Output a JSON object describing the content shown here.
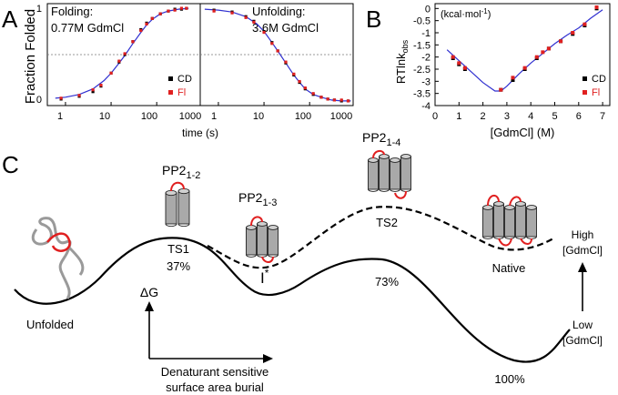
{
  "panels": {
    "A": {
      "letter": "A",
      "ylabel": "Fraction Folded",
      "xlabel": "time (s)",
      "yticks": [
        "0",
        "1"
      ],
      "xticks": [
        "1",
        "10",
        "100",
        "1000"
      ],
      "legend": {
        "cd": "CD",
        "fl": "Fl"
      },
      "left": {
        "label_line1": "Folding:",
        "label_line2": "0.77M GdmCl"
      },
      "right": {
        "label_line1": "Unfolding:",
        "label_line2": "3.6M GdmCl"
      }
    },
    "B": {
      "letter": "B",
      "unit": "(kcal·mol",
      "unit_sup": "-1",
      "unit_close": ")",
      "ylabel_main": "RTlnk",
      "ylabel_sub": "obs",
      "xlabel": "[GdmCl] (M)",
      "yticks": [
        "0",
        "-0.5",
        "-1",
        "-1.5",
        "-2",
        "-2.5",
        "-3",
        "-3.5",
        "-4"
      ],
      "xticks": [
        "0",
        "1",
        "2",
        "3",
        "4",
        "5",
        "6",
        "7"
      ],
      "legend": {
        "cd": "CD",
        "fl": "Fl"
      }
    },
    "C": {
      "letter": "C",
      "labels": {
        "pp2_12_main": "PP2",
        "pp2_12_sub": "1-2",
        "pp2_13_main": "PP2",
        "pp2_13_sub": "1-3",
        "pp2_14_main": "PP2",
        "pp2_14_sub": "1-4",
        "ts1": "TS1",
        "ts1_pct": "37%",
        "ts2": "TS2",
        "ts2_pct": "73%",
        "istar": "I",
        "istar_sup": "*",
        "native": "Native",
        "unfolded": "Unfolded",
        "delta_g": "ΔG",
        "axis_line1": "Denaturant sensitive",
        "axis_line2": "surface area burial",
        "pct_100": "100%",
        "high_line1": "High",
        "high_line2": "[GdmCl]",
        "low_line1": "Low",
        "low_line2": "[GdmCl]"
      }
    }
  },
  "chart_data": [
    {
      "type": "scatter",
      "title": "Folding: 0.77M GdmCl",
      "xlabel": "time (s)",
      "ylabel": "Fraction Folded",
      "xscale": "log",
      "xlim": [
        0.4,
        900
      ],
      "ylim": [
        -0.05,
        1.05
      ],
      "series": [
        {
          "name": "CD",
          "x": [
            0.8,
            2,
            4,
            6,
            10,
            15,
            20,
            30,
            45,
            60,
            80,
            120,
            180,
            250,
            350,
            450
          ],
          "y": [
            0.02,
            0.05,
            0.1,
            0.16,
            0.3,
            0.42,
            0.5,
            0.64,
            0.77,
            0.84,
            0.89,
            0.94,
            0.97,
            0.99,
            0.99,
            1.0
          ]
        },
        {
          "name": "Fl",
          "x": [
            0.8,
            2,
            4,
            6,
            10,
            15,
            20,
            30,
            45,
            60,
            80,
            120,
            180,
            250,
            350,
            450
          ],
          "y": [
            0.03,
            0.06,
            0.12,
            0.17,
            0.3,
            0.43,
            0.51,
            0.64,
            0.76,
            0.83,
            0.89,
            0.94,
            0.97,
            0.98,
            1.0,
            1.0
          ]
        }
      ],
      "fit": {
        "x": [
          0.6,
          1,
          2,
          4,
          7,
          10,
          15,
          20,
          30,
          45,
          60,
          80,
          120,
          180,
          300,
          500
        ],
        "y": [
          0.03,
          0.04,
          0.07,
          0.13,
          0.22,
          0.3,
          0.41,
          0.49,
          0.62,
          0.74,
          0.82,
          0.88,
          0.94,
          0.97,
          0.99,
          1.0
        ]
      },
      "reference_line": 0.5
    },
    {
      "type": "scatter",
      "title": "Unfolding: 3.6M GdmCl",
      "xlabel": "time (s)",
      "xscale": "log",
      "xlim": [
        0.4,
        900
      ],
      "ylim": [
        -0.05,
        1.05
      ],
      "series": [
        {
          "name": "CD",
          "x": [
            0.8,
            2,
            4,
            6,
            10,
            15,
            20,
            30,
            45,
            60,
            80,
            120,
            180,
            250,
            350,
            500,
            700
          ],
          "y": [
            0.98,
            0.96,
            0.91,
            0.86,
            0.75,
            0.63,
            0.54,
            0.41,
            0.28,
            0.2,
            0.13,
            0.07,
            0.04,
            0.02,
            0.01,
            0.0,
            0.0
          ]
        },
        {
          "name": "Fl",
          "x": [
            0.8,
            2,
            4,
            6,
            10,
            15,
            20,
            30,
            45,
            60,
            80,
            120,
            180,
            250,
            350,
            500,
            700
          ],
          "y": [
            0.97,
            0.95,
            0.9,
            0.85,
            0.74,
            0.62,
            0.54,
            0.42,
            0.29,
            0.21,
            0.14,
            0.08,
            0.04,
            0.02,
            0.01,
            0.01,
            0.0
          ]
        }
      ],
      "fit": {
        "x": [
          0.5,
          1,
          2,
          4,
          7,
          10,
          15,
          20,
          30,
          45,
          60,
          80,
          120,
          180,
          300,
          500,
          800
        ],
        "y": [
          0.99,
          0.98,
          0.96,
          0.91,
          0.83,
          0.75,
          0.63,
          0.54,
          0.41,
          0.28,
          0.2,
          0.13,
          0.07,
          0.04,
          0.01,
          0.0,
          0.0
        ]
      },
      "reference_line": 0.5
    },
    {
      "type": "scatter",
      "title": "",
      "xlabel": "[GdmCl] (M)",
      "ylabel": "RTlnk_obs (kcal·mol-1)",
      "xlim": [
        0,
        7.3
      ],
      "ylim": [
        -4,
        0.2
      ],
      "series": [
        {
          "name": "CD",
          "x": [
            0.75,
            1.0,
            1.25,
            2.75,
            3.25,
            3.75,
            4.25,
            4.75,
            5.25,
            5.75,
            6.25,
            6.75
          ],
          "y": [
            -2.05,
            -2.3,
            -2.5,
            -3.35,
            -2.95,
            -2.5,
            -2.05,
            -1.65,
            -1.35,
            -1.05,
            -0.7,
            0.0
          ]
        },
        {
          "name": "Fl",
          "x": [
            0.75,
            1.0,
            1.25,
            2.75,
            3.25,
            3.75,
            4.25,
            4.5,
            4.75,
            5.25,
            5.75,
            6.25,
            6.75
          ],
          "y": [
            -2.0,
            -2.25,
            -2.45,
            -3.35,
            -2.85,
            -2.45,
            -2.0,
            -1.8,
            -1.65,
            -1.35,
            -1.0,
            -0.65,
            0.05
          ]
        }
      ],
      "fit": {
        "x": [
          0.5,
          1.0,
          1.5,
          2.0,
          2.5,
          2.75,
          3.0,
          3.5,
          4.0,
          4.5,
          5.0,
          5.5,
          6.0,
          6.5,
          7.0
        ],
        "y": [
          -1.7,
          -2.15,
          -2.6,
          -3.05,
          -3.4,
          -3.4,
          -3.2,
          -2.7,
          -2.25,
          -1.85,
          -1.45,
          -1.1,
          -0.8,
          -0.4,
          -0.05
        ]
      }
    }
  ]
}
